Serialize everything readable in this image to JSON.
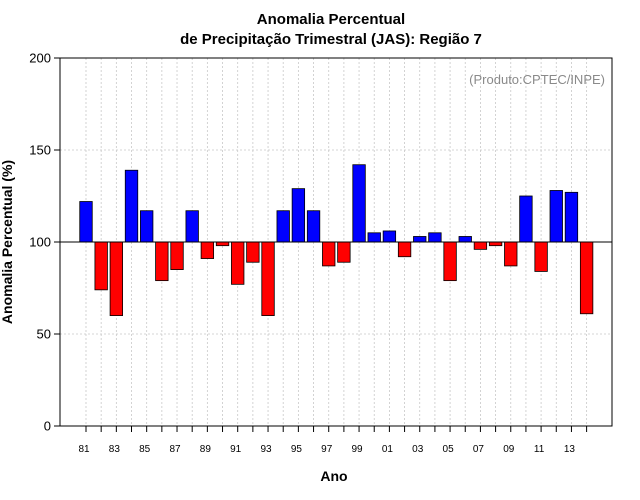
{
  "chart_data": {
    "type": "bar",
    "title_line1": "Anomalia Percentual",
    "title_line2": "de Precipitação Trimestral (JAS): Região 7",
    "annotation": "(Produto:CPTEC/INPE)",
    "xlabel": "Ano",
    "ylabel": "Anomalia Percentual (%)",
    "ylim": [
      0,
      200
    ],
    "baseline": 100,
    "yticks": [
      0,
      50,
      100,
      150,
      200
    ],
    "ytick_labels": [
      "0",
      "50",
      "100",
      "150",
      "200"
    ],
    "xtick_labels": [
      "81",
      "83",
      "85",
      "87",
      "89",
      "91",
      "93",
      "95",
      "97",
      "99",
      "01",
      "03",
      "05",
      "07",
      "09",
      "11",
      "13"
    ],
    "categories": [
      "1981",
      "1982",
      "1983",
      "1984",
      "1985",
      "1986",
      "1987",
      "1988",
      "1989",
      "1990",
      "1991",
      "1992",
      "1993",
      "1994",
      "1995",
      "1996",
      "1997",
      "1998",
      "1999",
      "2000",
      "2001",
      "2002",
      "2003",
      "2004",
      "2005",
      "2006",
      "2007",
      "2008",
      "2009",
      "2010",
      "2011",
      "2012",
      "2013",
      "2014"
    ],
    "values": [
      122,
      74,
      60,
      139,
      117,
      79,
      85,
      117,
      91,
      98,
      77,
      89,
      60,
      117,
      129,
      117,
      87,
      89,
      142,
      105,
      106,
      92,
      103,
      105,
      79,
      103,
      96,
      98,
      87,
      125,
      84,
      128,
      127,
      61
    ],
    "colors": {
      "above": "#0000ff",
      "below": "#ff0000"
    },
    "grid": true
  }
}
